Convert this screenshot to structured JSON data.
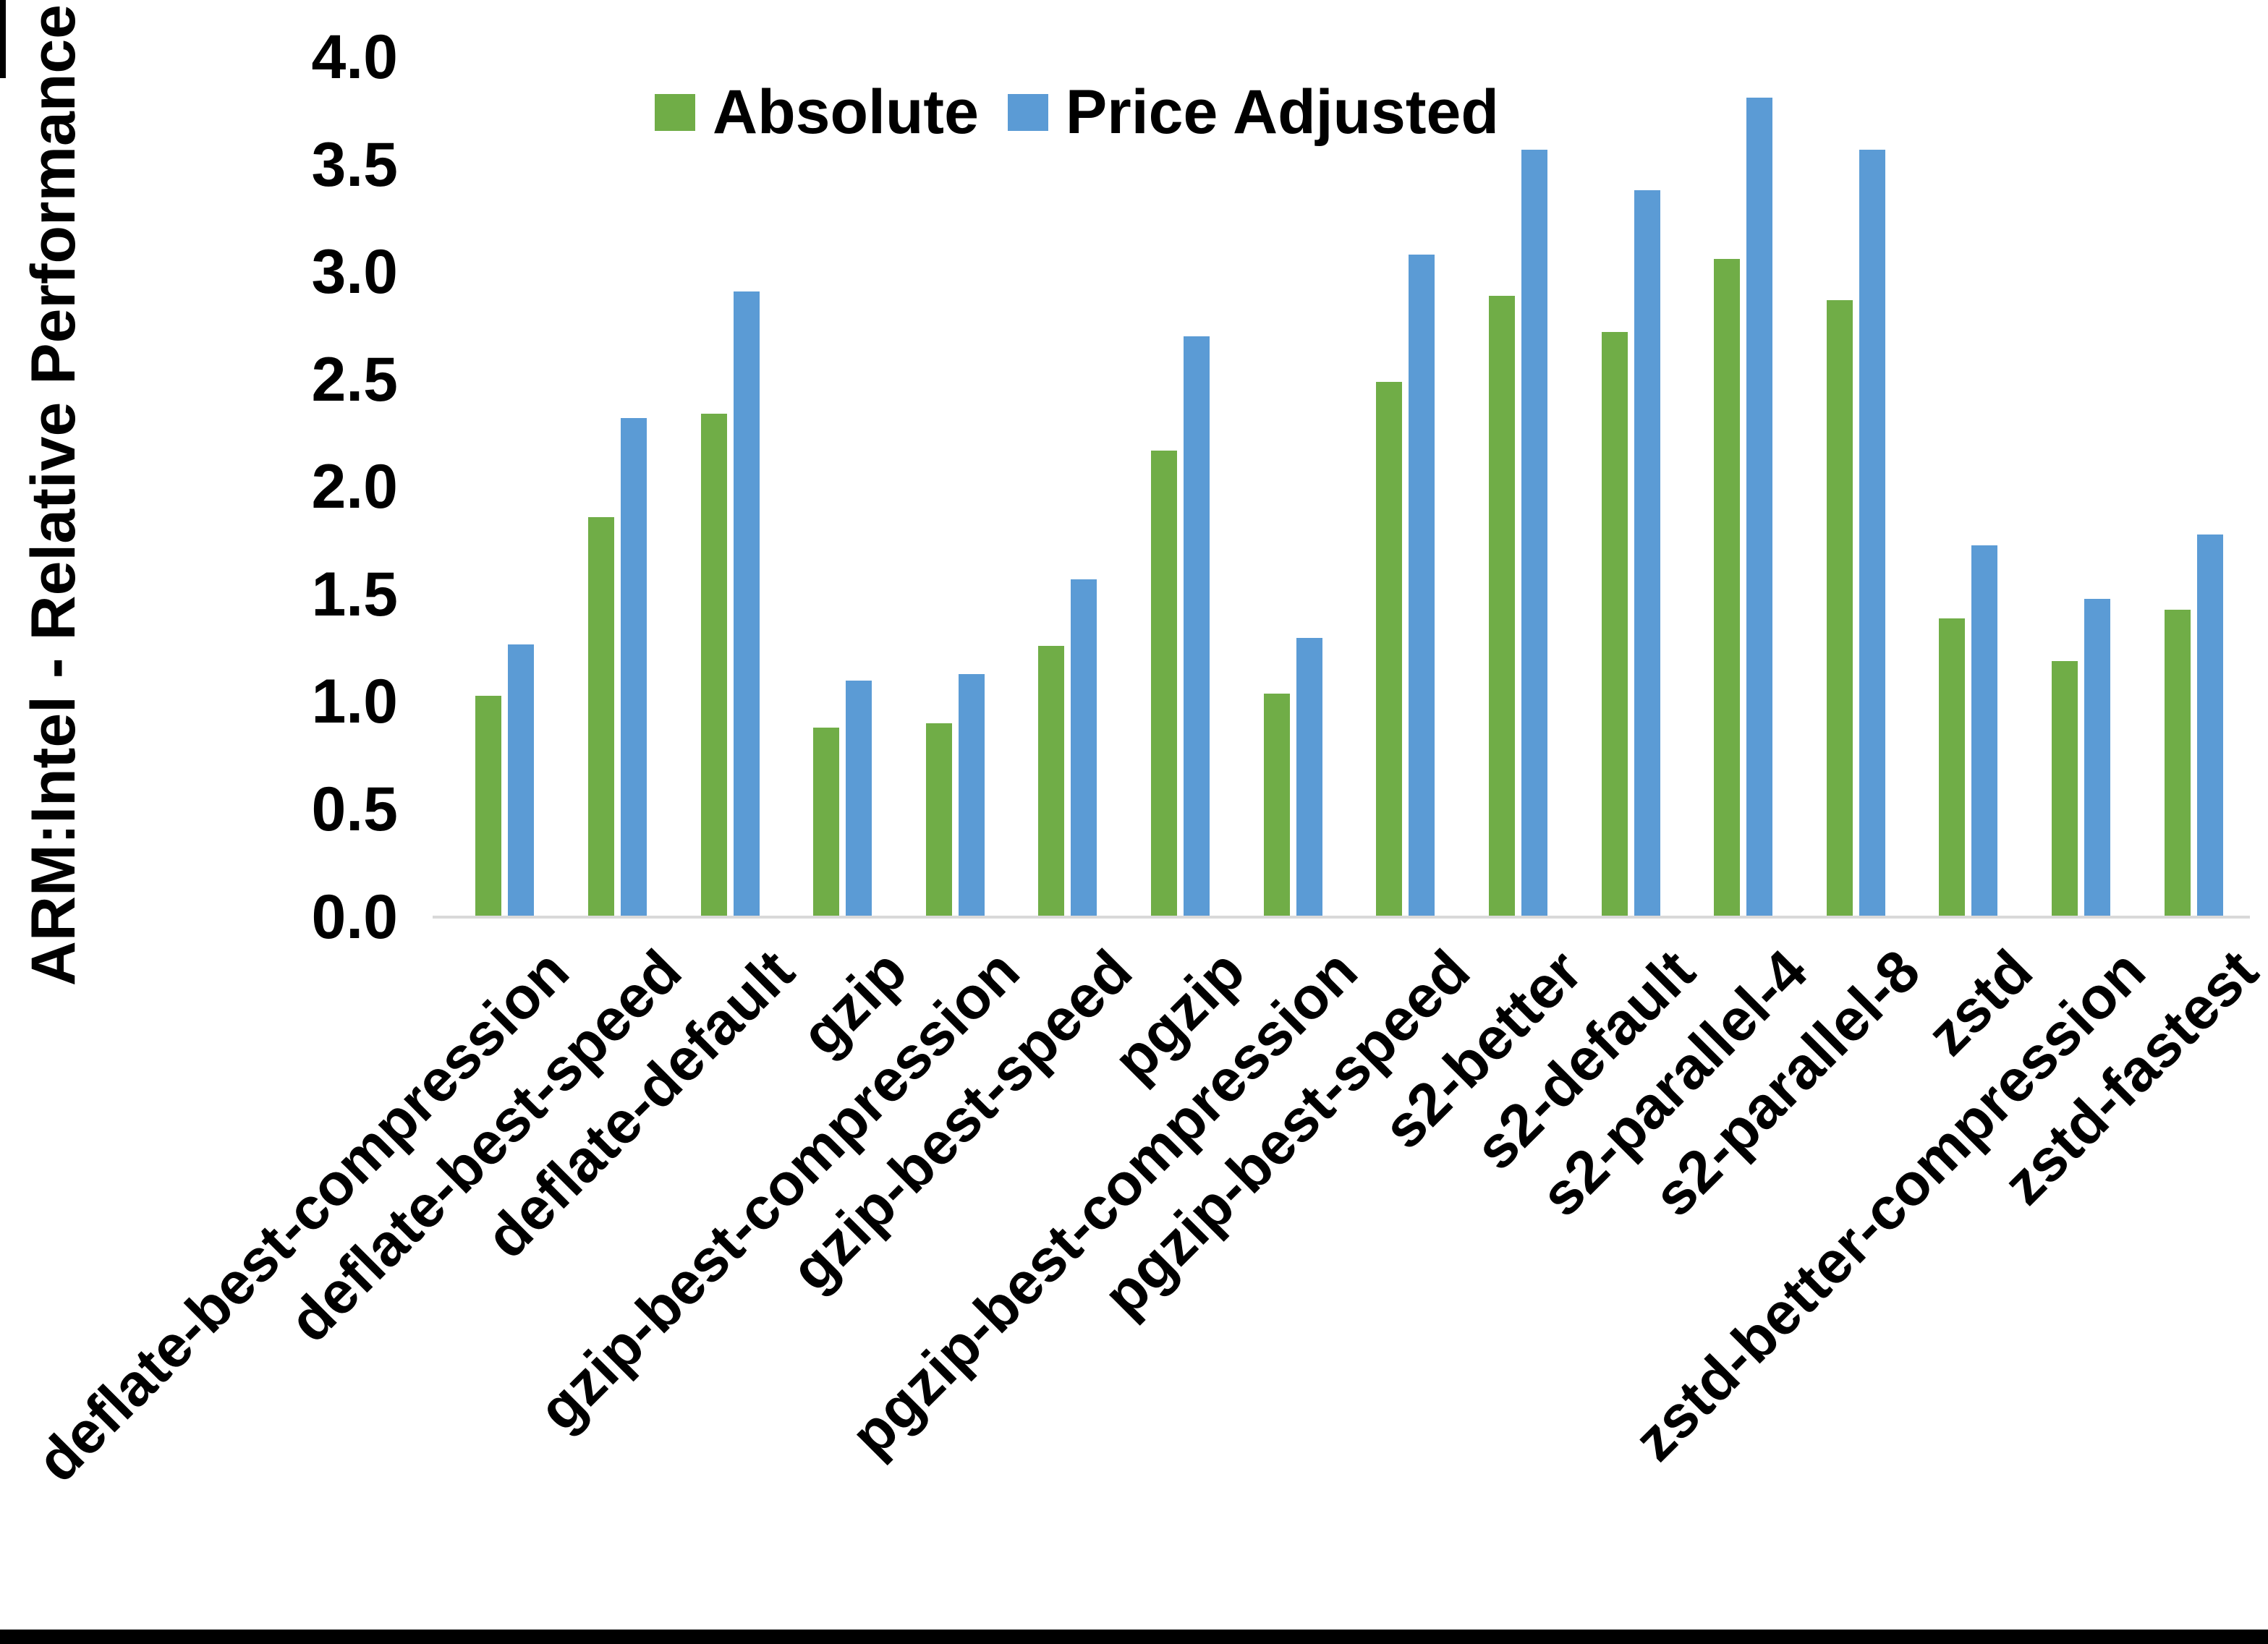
{
  "chart_data": {
    "type": "bar",
    "title": "",
    "xlabel": "",
    "ylabel": "ARM:Intel - Relative Performance",
    "ylim": [
      0,
      4
    ],
    "ytick_step": 0.5,
    "ytick_labels": [
      "0.0",
      "0.5",
      "1.0",
      "1.5",
      "2.0",
      "2.5",
      "3.0",
      "3.5",
      "4.0"
    ],
    "grid": false,
    "legend_position": "top-center",
    "categories": [
      "deflate-best-compression",
      "deflate-best-speed",
      "deflate-default",
      "gzip",
      "gzip-best-compression",
      "gzip-best-speed",
      "pgzip",
      "pgzip-best-compression",
      "pgzip-best-speed",
      "s2-better",
      "s2-default",
      "s2-parallel-4",
      "s2-parallel-8",
      "zstd",
      "zstd-better-compression",
      "zstd-fastest"
    ],
    "series": [
      {
        "name": "Absolute",
        "color": "#70AD47",
        "values": [
          1.03,
          1.86,
          2.34,
          0.88,
          0.9,
          1.26,
          2.17,
          1.04,
          2.49,
          2.89,
          2.72,
          3.06,
          2.87,
          1.39,
          1.19,
          1.43
        ]
      },
      {
        "name": "Price Adjusted",
        "color": "#5B9BD5",
        "values": [
          1.27,
          2.32,
          2.91,
          1.1,
          1.13,
          1.57,
          2.7,
          1.3,
          3.08,
          3.57,
          3.38,
          3.81,
          3.57,
          1.73,
          1.48,
          1.78
        ]
      }
    ],
    "axis_line_color": "#D9D9D9",
    "text_color": "#000000",
    "bottom_border_color": "#000000"
  }
}
